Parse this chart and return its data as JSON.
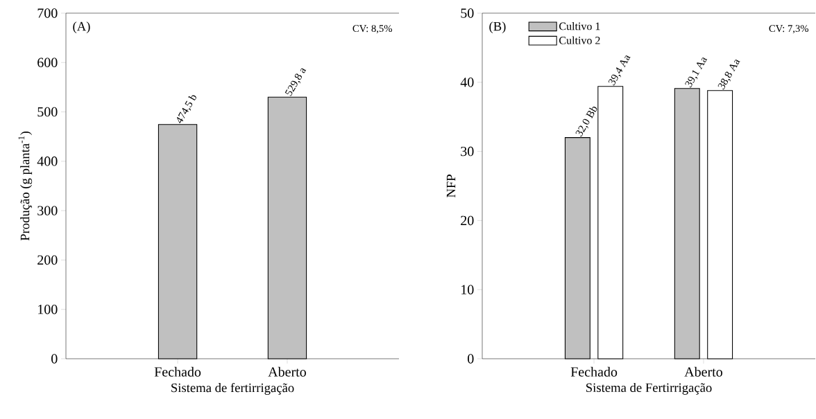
{
  "chart_data": [
    {
      "type": "bar",
      "xlabel": "Sistema de fertirrigação",
      "ylabel": "Produção (g planta$^{-1}$)",
      "categories": [
        "Fechado",
        "Aberto"
      ],
      "values": [
        474.5,
        529.8
      ],
      "color": "#c0c0c0",
      "value_labels": [
        "474,5 b",
        "529,8 a"
      ],
      "ylim": [
        0,
        700
      ],
      "yticks": [
        0,
        100,
        200,
        300,
        400,
        500,
        600,
        700
      ],
      "annotations": [
        "(A)",
        "CV: 8,5%"
      ]
    },
    {
      "type": "bar",
      "xlabel": "Sistema de Fertirrigação",
      "ylabel": "NFP",
      "categories": [
        "Fechado",
        "Aberto"
      ],
      "series": [
        {
          "name": "Cultivo 1",
          "color": "#c0c0c0",
          "values": [
            32.0,
            39.1
          ],
          "value_labels": [
            "32,0 Bb",
            "39,1 Aa"
          ]
        },
        {
          "name": "Cultivo 2",
          "color": "#ffffff",
          "values": [
            39.4,
            38.8
          ],
          "value_labels": [
            "39,4 Aa",
            "38,8 Aa"
          ]
        }
      ],
      "ylim": [
        0,
        50
      ],
      "yticks": [
        0,
        10,
        20,
        30,
        40,
        50
      ],
      "legend": "top left",
      "annotations": [
        "(B)",
        "CV: 7,3%"
      ]
    }
  ]
}
